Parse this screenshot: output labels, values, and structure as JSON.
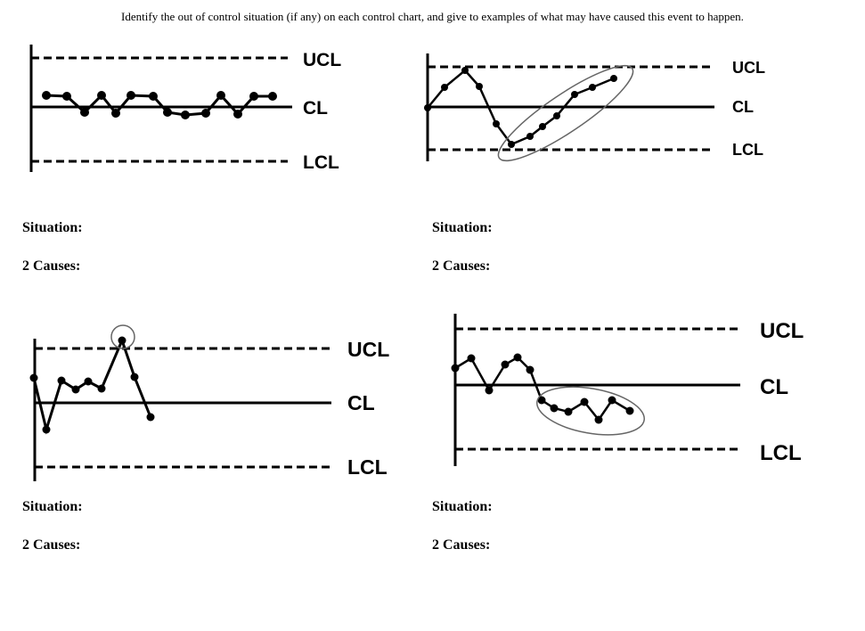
{
  "instructions": "Identify the out of control situation (if any) on each control chart, and give to examples of what may have caused this event to happen.",
  "situation_label": "Situation:",
  "causes_label": "2 Causes:",
  "limit_labels": {
    "ucl": "UCL",
    "cl": "CL",
    "lcl": "LCL"
  },
  "chart_data": [
    {
      "type": "line",
      "title": "",
      "ucl_label": "UCL",
      "cl_label": "CL",
      "lcl_label": "LCL",
      "pattern": "points hugging the center line",
      "circled_points": []
    },
    {
      "type": "line",
      "title": "",
      "ucl_label": "UCL",
      "cl_label": "CL",
      "lcl_label": "LCL",
      "pattern": "upward trend of consecutive rising points",
      "circled_points": [
        5,
        6,
        7,
        8,
        9,
        10,
        11
      ]
    },
    {
      "type": "line",
      "title": "",
      "ucl_label": "UCL",
      "cl_label": "CL",
      "lcl_label": "LCL",
      "pattern": "single point beyond the UCL",
      "circled_points": [
        7
      ]
    },
    {
      "type": "line",
      "title": "",
      "ucl_label": "UCL",
      "cl_label": "CL",
      "lcl_label": "LCL",
      "pattern": "run of points below the center line",
      "circled_points": [
        6,
        7,
        8,
        9,
        10,
        11,
        12,
        13
      ]
    }
  ]
}
